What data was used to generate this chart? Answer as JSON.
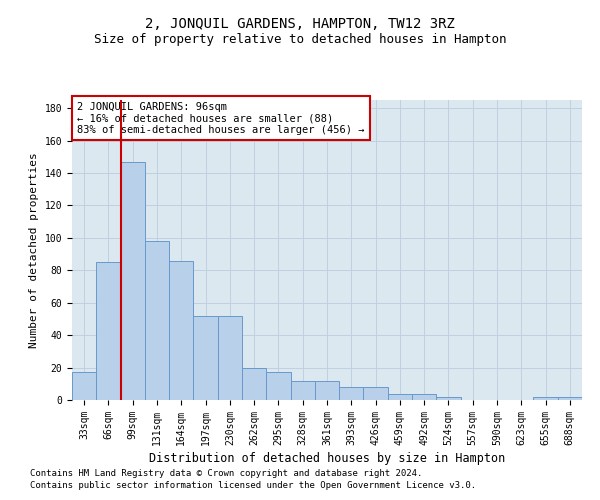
{
  "title": "2, JONQUIL GARDENS, HAMPTON, TW12 3RZ",
  "subtitle": "Size of property relative to detached houses in Hampton",
  "xlabel": "Distribution of detached houses by size in Hampton",
  "ylabel": "Number of detached properties",
  "categories": [
    "33sqm",
    "66sqm",
    "99sqm",
    "131sqm",
    "164sqm",
    "197sqm",
    "230sqm",
    "262sqm",
    "295sqm",
    "328sqm",
    "361sqm",
    "393sqm",
    "426sqm",
    "459sqm",
    "492sqm",
    "524sqm",
    "557sqm",
    "590sqm",
    "623sqm",
    "655sqm",
    "688sqm"
  ],
  "values": [
    17,
    85,
    147,
    98,
    86,
    52,
    52,
    20,
    17,
    12,
    12,
    8,
    8,
    4,
    4,
    2,
    0,
    0,
    0,
    2,
    2
  ],
  "bar_color": "#b8d0ea",
  "bar_edge_color": "#6699cc",
  "vline_color": "#cc0000",
  "vline_x_index": 1.5,
  "annotation_text": "2 JONQUIL GARDENS: 96sqm\n← 16% of detached houses are smaller (88)\n83% of semi-detached houses are larger (456) →",
  "annotation_box_color": "#ffffff",
  "annotation_box_edge": "#cc0000",
  "ylim": [
    0,
    185
  ],
  "yticks": [
    0,
    20,
    40,
    60,
    80,
    100,
    120,
    140,
    160,
    180
  ],
  "grid_color": "#c0d0e0",
  "bg_color": "#dce8f0",
  "footer1": "Contains HM Land Registry data © Crown copyright and database right 2024.",
  "footer2": "Contains public sector information licensed under the Open Government Licence v3.0.",
  "title_fontsize": 10,
  "subtitle_fontsize": 9,
  "xlabel_fontsize": 8.5,
  "ylabel_fontsize": 8,
  "tick_fontsize": 7,
  "annotation_fontsize": 7.5,
  "footer_fontsize": 6.5
}
